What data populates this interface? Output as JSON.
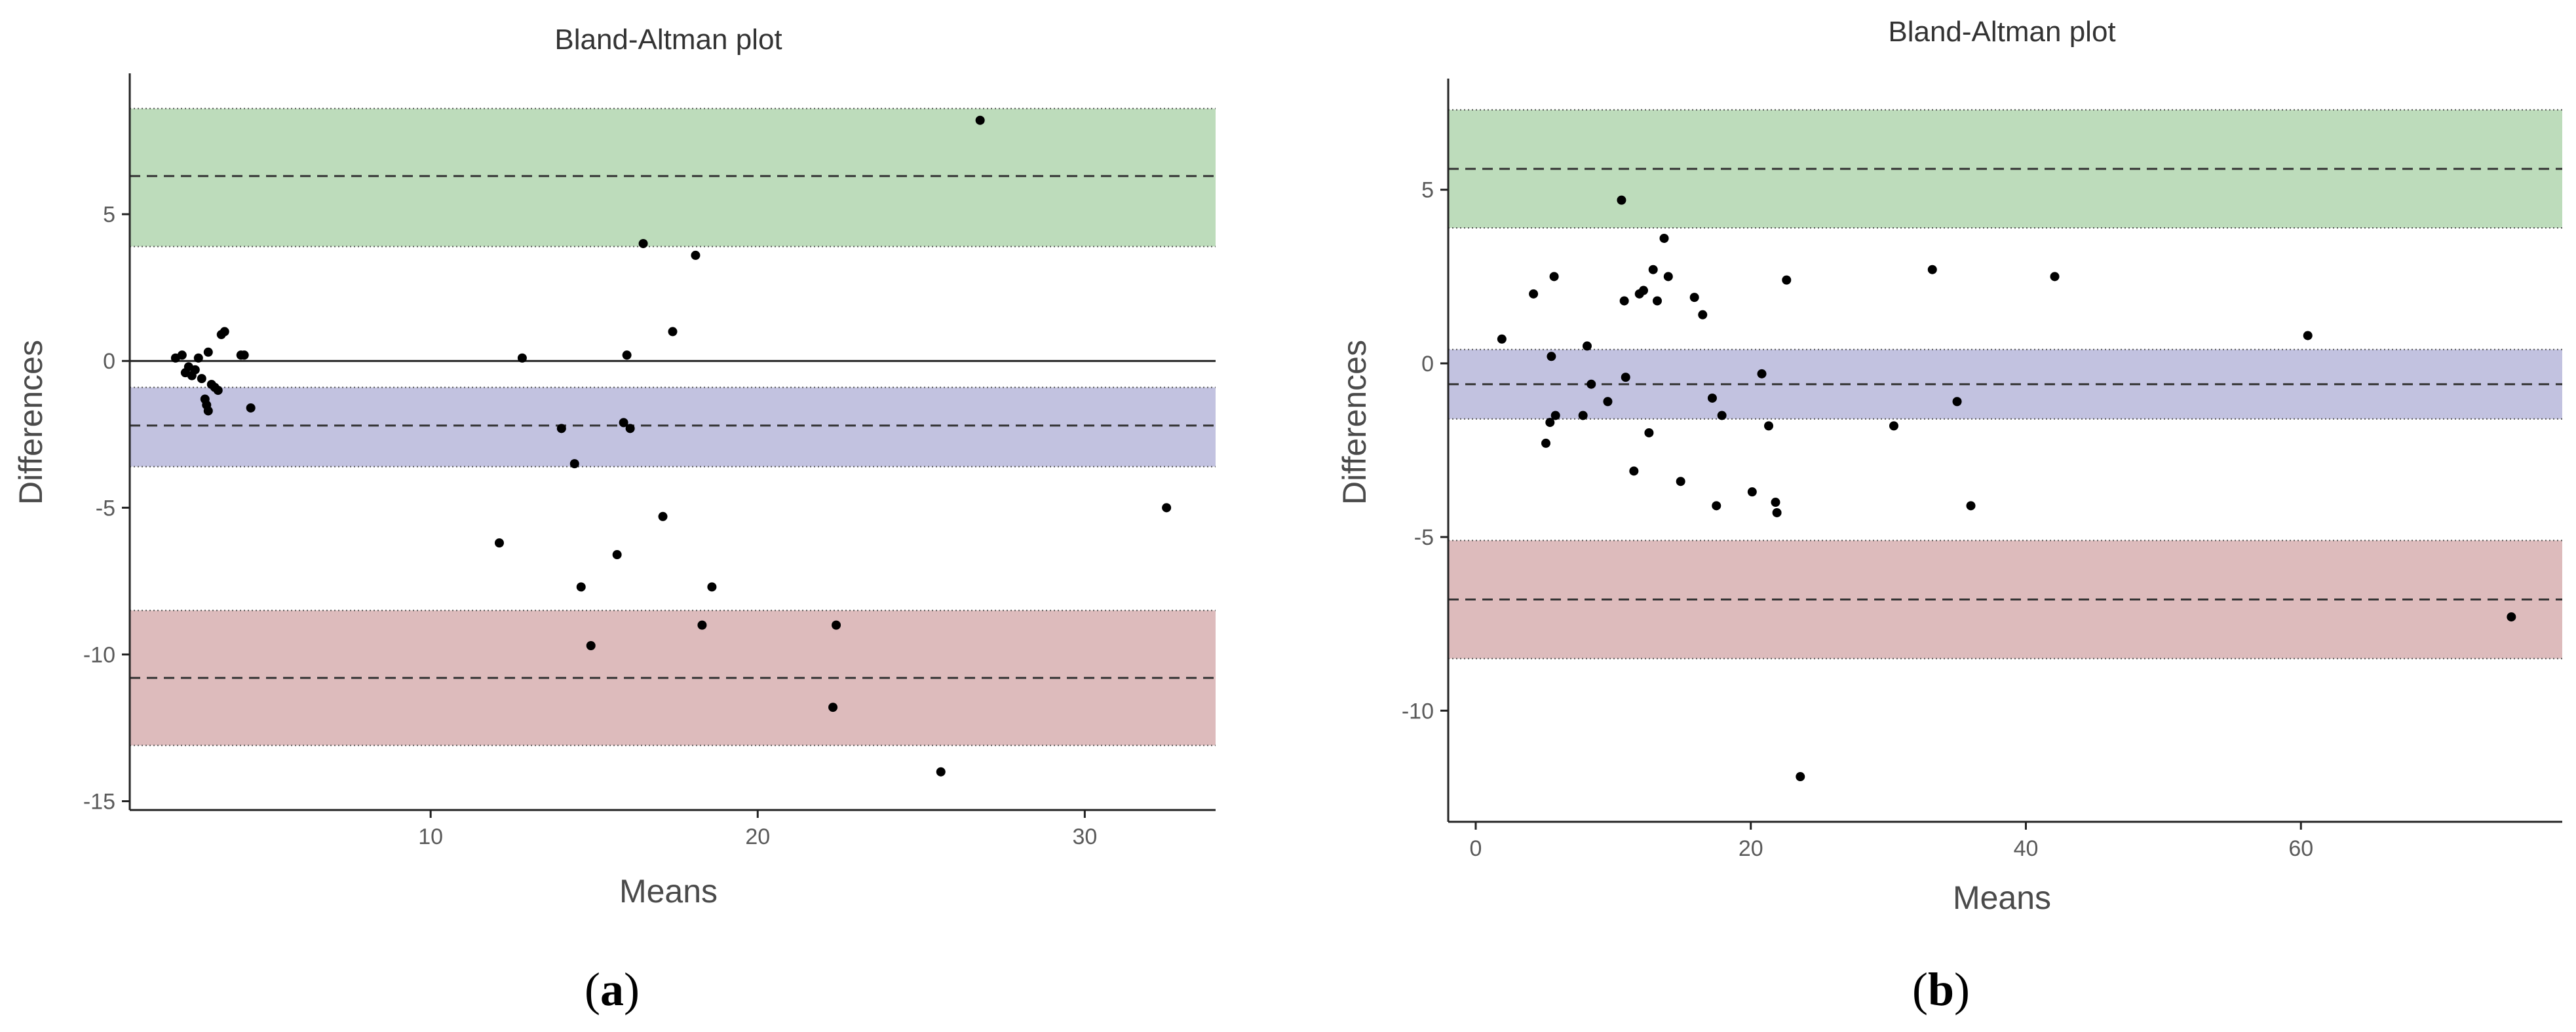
{
  "chart_data": [
    {
      "type": "scatter",
      "id": "a",
      "title": "Bland-Altman plot",
      "xlabel": "Means",
      "ylabel": "Differences",
      "panel_label": "a",
      "xlim": [
        0.8,
        34
      ],
      "ylim": [
        -15.3,
        9.8
      ],
      "xticks": [
        10,
        20,
        30
      ],
      "yticks": [
        5,
        0,
        -5,
        -10,
        -15
      ],
      "zero_line": true,
      "bands": {
        "upper_loa": {
          "mean": 6.3,
          "ci": [
            3.9,
            8.6
          ],
          "color": "#bddcbb"
        },
        "bias": {
          "mean": -2.2,
          "ci": [
            -3.6,
            -0.9
          ],
          "color": "#c2c2e0"
        },
        "lower_loa": {
          "mean": -10.8,
          "ci": [
            -13.1,
            -8.5
          ],
          "color": "#ddbbbc"
        }
      },
      "points": [
        [
          2.2,
          0.1
        ],
        [
          2.4,
          0.2
        ],
        [
          2.5,
          -0.4
        ],
        [
          2.6,
          -0.2
        ],
        [
          2.7,
          -0.5
        ],
        [
          2.8,
          -0.3
        ],
        [
          2.9,
          0.1
        ],
        [
          3.0,
          -0.6
        ],
        [
          3.1,
          -1.3
        ],
        [
          3.15,
          -1.5
        ],
        [
          3.2,
          -1.7
        ],
        [
          3.2,
          0.3
        ],
        [
          3.3,
          -0.8
        ],
        [
          3.4,
          -0.9
        ],
        [
          3.5,
          -1.0
        ],
        [
          3.6,
          0.9
        ],
        [
          3.7,
          1.0
        ],
        [
          4.2,
          0.2
        ],
        [
          4.3,
          0.2
        ],
        [
          4.5,
          -1.6
        ],
        [
          12.1,
          -6.2
        ],
        [
          12.8,
          0.1
        ],
        [
          14.0,
          -2.3
        ],
        [
          14.4,
          -3.5
        ],
        [
          14.6,
          -7.7
        ],
        [
          14.9,
          -9.7
        ],
        [
          15.7,
          -6.6
        ],
        [
          15.9,
          -2.1
        ],
        [
          16.0,
          0.2
        ],
        [
          16.1,
          -2.3
        ],
        [
          16.5,
          4.0
        ],
        [
          17.1,
          -5.3
        ],
        [
          17.4,
          1.0
        ],
        [
          18.1,
          3.6
        ],
        [
          18.3,
          -9.0
        ],
        [
          18.6,
          -7.7
        ],
        [
          22.3,
          -11.8
        ],
        [
          22.4,
          -9.0
        ],
        [
          25.6,
          -14.0
        ],
        [
          26.8,
          8.2
        ],
        [
          32.5,
          -5.0
        ]
      ]
    },
    {
      "type": "scatter",
      "id": "b",
      "title": "Bland-Altman plot",
      "xlabel": "Means",
      "ylabel": "Differences",
      "panel_label": "b",
      "xlim": [
        -2,
        79
      ],
      "ylim": [
        -13.2,
        8.2
      ],
      "xticks": [
        0,
        20,
        40,
        60
      ],
      "yticks": [
        5,
        0,
        -5,
        -10
      ],
      "zero_line": false,
      "bands": {
        "upper_loa": {
          "mean": 5.6,
          "ci": [
            3.9,
            7.3
          ],
          "color": "#bddcbb"
        },
        "bias": {
          "mean": -0.6,
          "ci": [
            -1.6,
            0.4
          ],
          "color": "#c2c2e0"
        },
        "lower_loa": {
          "mean": -6.8,
          "ci": [
            -8.5,
            -5.1
          ],
          "color": "#ddbbbc"
        }
      },
      "points": [
        [
          1.9,
          0.7
        ],
        [
          4.2,
          2.0
        ],
        [
          5.1,
          -2.3
        ],
        [
          5.4,
          -1.7
        ],
        [
          5.5,
          0.2
        ],
        [
          5.7,
          2.5
        ],
        [
          5.8,
          -1.5
        ],
        [
          7.8,
          -1.5
        ],
        [
          8.1,
          0.5
        ],
        [
          8.4,
          -0.6
        ],
        [
          9.6,
          -1.1
        ],
        [
          10.6,
          4.7
        ],
        [
          10.8,
          1.8
        ],
        [
          10.9,
          -0.4
        ],
        [
          11.5,
          -3.1
        ],
        [
          11.9,
          2.0
        ],
        [
          12.2,
          2.1
        ],
        [
          12.6,
          -2.0
        ],
        [
          12.9,
          2.7
        ],
        [
          13.2,
          1.8
        ],
        [
          13.7,
          3.6
        ],
        [
          14.0,
          2.5
        ],
        [
          14.9,
          -3.4
        ],
        [
          15.9,
          1.9
        ],
        [
          16.5,
          1.4
        ],
        [
          17.2,
          -1.0
        ],
        [
          17.5,
          -4.1
        ],
        [
          17.9,
          -1.5
        ],
        [
          20.1,
          -3.7
        ],
        [
          20.8,
          -0.3
        ],
        [
          21.3,
          -1.8
        ],
        [
          21.8,
          -4.0
        ],
        [
          21.9,
          -4.3
        ],
        [
          22.6,
          2.4
        ],
        [
          23.6,
          -11.9
        ],
        [
          30.4,
          -1.8
        ],
        [
          33.2,
          2.7
        ],
        [
          35.0,
          -1.1
        ],
        [
          36.0,
          -4.1
        ],
        [
          42.1,
          2.5
        ],
        [
          60.5,
          0.8
        ],
        [
          75.3,
          -7.3
        ]
      ]
    }
  ]
}
